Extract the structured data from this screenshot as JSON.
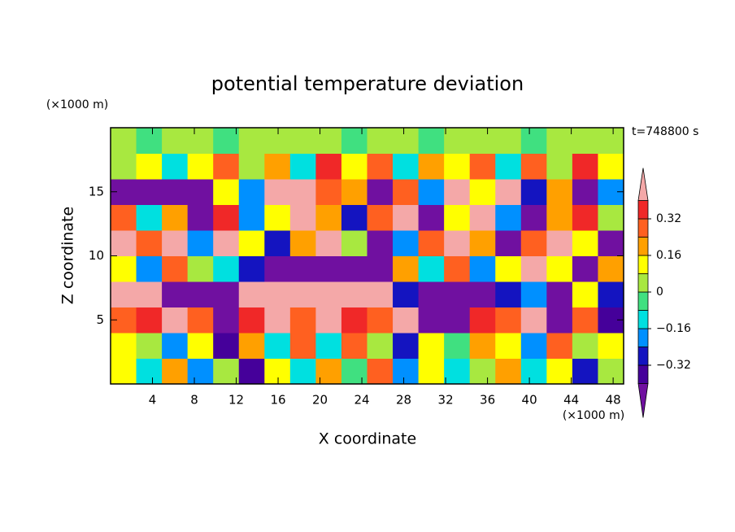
{
  "chart_data": {
    "type": "contour",
    "title": "potential temperature deviation",
    "xlabel": "X coordinate",
    "ylabel": "Z coordinate",
    "xunit": "(×1000 m)",
    "yunit": "(×1000 m)",
    "annotation": "t=748800 s",
    "xlim": [
      0,
      49
    ],
    "ylim": [
      0,
      20
    ],
    "xticks": [
      4,
      8,
      12,
      16,
      20,
      24,
      28,
      32,
      36,
      40,
      44,
      48
    ],
    "yticks": [
      5,
      10,
      15
    ],
    "levels": [
      -0.4,
      -0.32,
      -0.24,
      -0.16,
      -0.08,
      0,
      0.08,
      0.16,
      0.24,
      0.32,
      0.4
    ],
    "colors": [
      "#7010a0",
      "#45009a",
      "#1414c0",
      "#0090ff",
      "#00e0e0",
      "#40e080",
      "#a8e840",
      "#ffff00",
      "#ffa000",
      "#ff6020",
      "#f02828",
      "#f4a8a8"
    ],
    "colorbar_ticks": [
      0.32,
      0.16,
      0,
      {
        "value": -0.16,
        "label": "−0.16"
      },
      {
        "value": -0.32,
        "label": "−0.32"
      }
    ],
    "values": [
      [
        0.1,
        -0.1,
        0.2,
        -0.2,
        0.05,
        -0.35,
        0.1,
        -0.1,
        0.2,
        -0.05,
        0.25,
        -0.2,
        0.1,
        -0.1,
        0.05,
        0.2,
        -0.15,
        0.1,
        -0.3,
        0.05
      ],
      [
        0.15,
        0.05,
        -0.2,
        0.1,
        -0.35,
        0.2,
        -0.1,
        0.25,
        -0.1,
        0.3,
        0.05,
        -0.25,
        0.15,
        -0.05,
        0.2,
        0.1,
        -0.2,
        0.3,
        0.0,
        0.1
      ],
      [
        0.3,
        0.35,
        0.45,
        0.3,
        -0.45,
        0.35,
        0.4,
        0.3,
        0.45,
        0.35,
        0.3,
        0.4,
        -0.45,
        -0.5,
        0.35,
        0.3,
        0.4,
        -0.45,
        0.3,
        -0.4
      ],
      [
        0.45,
        0.5,
        -0.45,
        -0.5,
        -0.42,
        0.45,
        0.5,
        0.5,
        0.45,
        0.5,
        0.45,
        -0.3,
        -0.45,
        -0.5,
        -0.42,
        -0.3,
        -0.2,
        -0.45,
        0.1,
        -0.3
      ],
      [
        0.1,
        -0.2,
        0.3,
        0.0,
        -0.1,
        -0.3,
        -0.45,
        -0.5,
        -0.45,
        -0.42,
        -0.45,
        0.2,
        -0.1,
        0.3,
        -0.2,
        0.1,
        0.45,
        0.1,
        -0.45,
        0.2
      ],
      [
        0.45,
        0.3,
        0.5,
        -0.2,
        0.45,
        0.1,
        -0.3,
        0.2,
        0.45,
        0.0,
        -0.45,
        -0.2,
        0.3,
        0.45,
        0.2,
        -0.45,
        0.3,
        0.45,
        0.1,
        -0.45
      ],
      [
        0.3,
        -0.1,
        0.2,
        -0.45,
        0.35,
        -0.2,
        0.1,
        0.45,
        0.2,
        -0.3,
        0.3,
        0.45,
        -0.45,
        0.1,
        0.4,
        -0.2,
        -0.45,
        0.2,
        0.35,
        0.05
      ],
      [
        -0.45,
        -0.5,
        -0.45,
        -0.42,
        0.1,
        -0.2,
        0.45,
        0.5,
        0.3,
        0.2,
        -0.45,
        0.3,
        -0.2,
        0.45,
        0.1,
        0.45,
        -0.3,
        0.2,
        -0.45,
        -0.2
      ],
      [
        0.0,
        0.1,
        -0.1,
        0.15,
        0.3,
        0.05,
        0.2,
        -0.1,
        0.35,
        0.1,
        0.25,
        -0.15,
        0.2,
        0.1,
        0.3,
        -0.1,
        0.25,
        0.05,
        0.35,
        0.1
      ],
      [
        0.05,
        -0.03,
        0.06,
        0.07,
        -0.05,
        0.04,
        0.07,
        0.02,
        0.06,
        -0.04,
        0.07,
        0.05,
        -0.06,
        0.06,
        0.07,
        0.03,
        -0.05,
        0.06,
        0.04,
        0.05
      ]
    ]
  }
}
